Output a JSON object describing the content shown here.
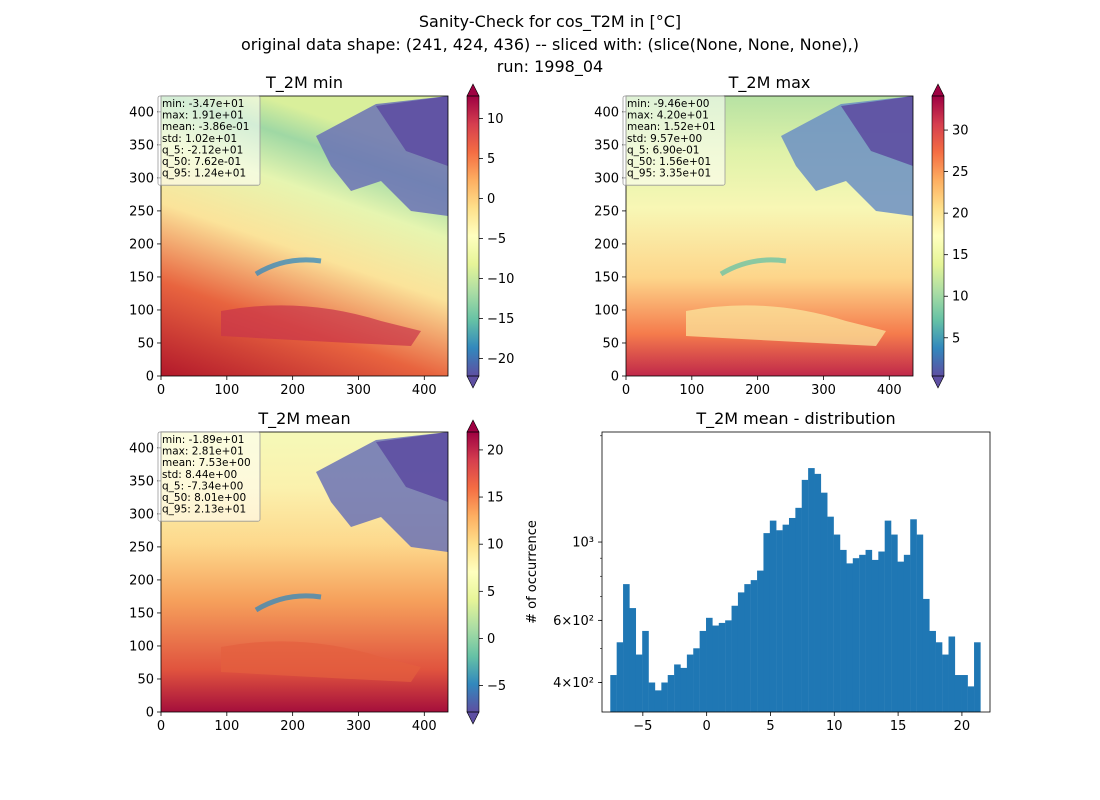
{
  "figure": {
    "title_lines": [
      "Sanity-Check for cos_T2M in [°C]",
      "original data shape: (241, 424, 436) -- sliced with: (slice(None, None, None),)",
      "run: 1998_04"
    ]
  },
  "chart_data": [
    {
      "type": "heatmap",
      "title": "T_2M min",
      "colormap": "Spectral_r",
      "xlim": [
        0,
        436
      ],
      "ylim": [
        0,
        424
      ],
      "xticks": [
        "0",
        "100",
        "200",
        "300",
        "400"
      ],
      "yticks": [
        "0",
        "50",
        "100",
        "150",
        "200",
        "250",
        "300",
        "350",
        "400"
      ],
      "colorbar": {
        "range": [
          -22.2,
          12.8
        ],
        "ticks": [
          "−20",
          "−15",
          "−10",
          "−5",
          "0",
          "5",
          "10"
        ],
        "tick_values": [
          -20,
          -15,
          -10,
          -5,
          0,
          5,
          10
        ]
      },
      "stats": [
        "min: -3.47e+01",
        "max: 1.91e+01",
        "mean: -3.86e-01",
        "std: 1.02e+01",
        "q_5: -2.12e+01",
        "q_50: 7.62e-01",
        "q_95: 1.24e+01"
      ]
    },
    {
      "type": "heatmap",
      "title": "T_2M max",
      "colormap": "Spectral_r",
      "xlim": [
        0,
        436
      ],
      "ylim": [
        0,
        424
      ],
      "xticks": [
        "0",
        "100",
        "200",
        "300",
        "400"
      ],
      "yticks": [
        "0",
        "50",
        "100",
        "150",
        "200",
        "250",
        "300",
        "350",
        "400"
      ],
      "colorbar": {
        "range": [
          0.4,
          34.1
        ],
        "ticks": [
          "5",
          "10",
          "15",
          "20",
          "25",
          "30"
        ],
        "tick_values": [
          5,
          10,
          15,
          20,
          25,
          30
        ]
      },
      "stats": [
        "min: -9.46e+00",
        "max: 4.20e+01",
        "mean: 1.52e+01",
        "std: 9.57e+00",
        "q_5: 6.90e-01",
        "q_50: 1.56e+01",
        "q_95: 3.35e+01"
      ]
    },
    {
      "type": "heatmap",
      "title": "T_2M mean",
      "colormap": "Spectral_r",
      "xlim": [
        0,
        436
      ],
      "ylim": [
        0,
        424
      ],
      "xticks": [
        "0",
        "100",
        "200",
        "300",
        "400"
      ],
      "yticks": [
        "0",
        "50",
        "100",
        "150",
        "200",
        "250",
        "300",
        "350",
        "400"
      ],
      "colorbar": {
        "range": [
          -7.8,
          21.9
        ],
        "ticks": [
          "−5",
          "0",
          "5",
          "10",
          "15",
          "20"
        ],
        "tick_values": [
          -5,
          0,
          5,
          10,
          15,
          20
        ]
      },
      "stats": [
        "min: -1.89e+01",
        "max: 2.81e+01",
        "mean: 7.53e+00",
        "std: 8.44e+00",
        "q_5: -7.34e+00",
        "q_50: 8.01e+00",
        "q_95: 2.13e+01"
      ]
    },
    {
      "type": "bar",
      "title": "T_2M mean - distribution",
      "xlabel": "",
      "ylabel": "# of occurrence",
      "yscale": "log",
      "color": "#1f77b4",
      "xlim": [
        -8.2,
        22.2
      ],
      "ylim": [
        330,
        2050
      ],
      "xticks": [
        "−5",
        "0",
        "5",
        "10",
        "15",
        "20"
      ],
      "xtick_values": [
        -5,
        0,
        5,
        10,
        15,
        20
      ],
      "yticks": [
        "4×10²",
        "6×10²",
        "10³"
      ],
      "ytick_values": [
        400,
        600,
        1000
      ],
      "x": [
        -7.3,
        -6.8,
        -6.3,
        -5.8,
        -5.3,
        -4.8,
        -4.3,
        -3.8,
        -3.3,
        -2.8,
        -2.3,
        -1.8,
        -1.3,
        -0.8,
        -0.3,
        0.2,
        0.7,
        1.2,
        1.7,
        2.2,
        2.7,
        3.2,
        3.7,
        4.2,
        4.7,
        5.2,
        5.7,
        6.2,
        6.7,
        7.2,
        7.7,
        8.2,
        8.7,
        9.2,
        9.7,
        10.2,
        10.7,
        11.2,
        11.7,
        12.2,
        12.7,
        13.2,
        13.7,
        14.2,
        14.7,
        15.2,
        15.7,
        16.2,
        16.7,
        17.2,
        17.7,
        18.2,
        18.7,
        19.2,
        19.7,
        20.2,
        20.7,
        21.2
      ],
      "values": [
        420,
        520,
        760,
        650,
        480,
        560,
        400,
        380,
        400,
        420,
        450,
        440,
        480,
        500,
        560,
        610,
        580,
        590,
        600,
        660,
        720,
        760,
        780,
        830,
        1060,
        1150,
        1080,
        1120,
        1170,
        1250,
        1500,
        1620,
        1560,
        1380,
        1180,
        1050,
        950,
        870,
        900,
        920,
        950,
        890,
        940,
        1150,
        1050,
        880,
        920,
        1160,
        1050,
        690,
        560,
        520,
        480,
        540,
        420,
        420,
        390,
        520
      ]
    }
  ]
}
